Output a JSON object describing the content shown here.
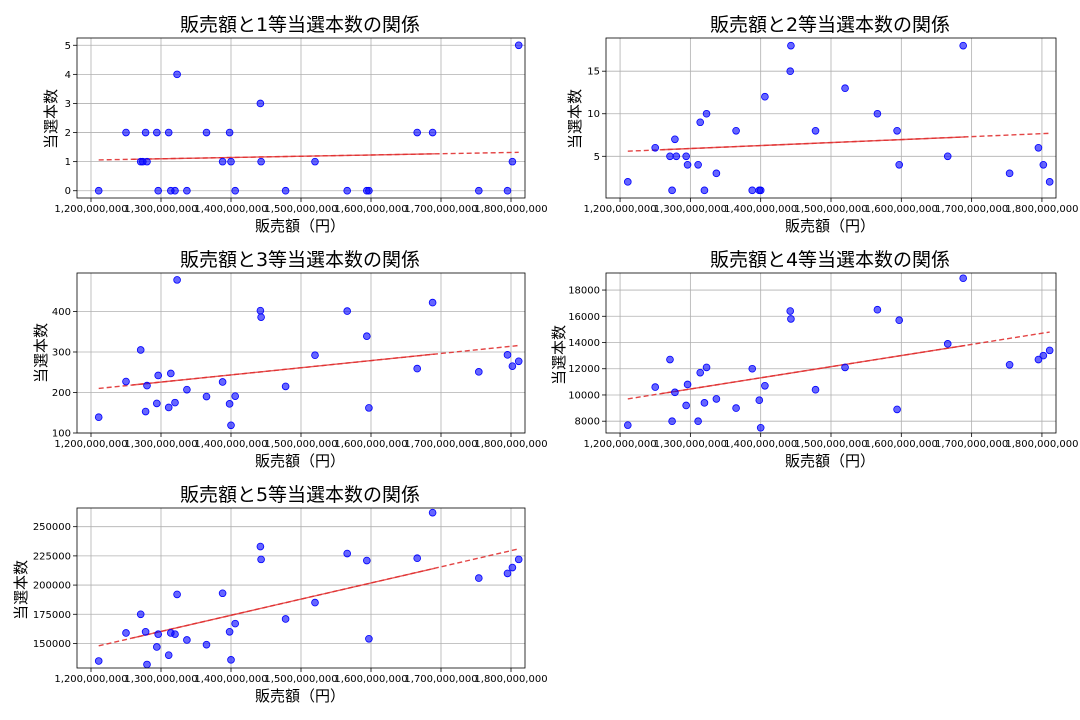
{
  "figure": {
    "colors": {
      "points": "#0000ff",
      "trend": "#e03030",
      "grid": "#b0b0b0"
    },
    "x_values": [
      1211000000,
      1250000000,
      1271000000,
      1274000000,
      1278000000,
      1280000000,
      1294000000,
      1296000000,
      1311000000,
      1314000000,
      1320000000,
      1323000000,
      1337000000,
      1365000000,
      1388000000,
      1398000000,
      1400000000,
      1406000000,
      1442000000,
      1443000000,
      1478000000,
      1520000000,
      1566000000,
      1594000000,
      1597000000,
      1666000000,
      1688000000,
      1754000000,
      1795000000,
      1802000000,
      1811000000
    ]
  },
  "chart_data": [
    {
      "type": "scatter",
      "title": "販売額と1等当選本数の関係",
      "xlabel": "販売額（円）",
      "ylabel": "当選本数",
      "x_ticks": [
        "1,200,000,000",
        "1,300,000,000",
        "1,400,000,000",
        "1,500,000,000",
        "1,600,000,000",
        "1,700,000,000",
        "1,800,000,000"
      ],
      "y_ticks": [
        "0",
        "1",
        "2",
        "3",
        "4",
        "5"
      ],
      "xlim": [
        1180000000,
        1820000000
      ],
      "ylim": [
        -0.25,
        5.25
      ],
      "y_values": [
        0,
        2,
        1,
        1,
        2,
        1,
        2,
        0,
        2,
        0,
        0,
        4,
        0,
        2,
        1,
        2,
        1,
        0,
        3,
        1,
        0,
        1,
        0,
        0,
        0,
        2,
        2,
        0,
        0,
        1,
        5
      ],
      "trend": [
        1.06,
        1.32
      ],
      "grid": true
    },
    {
      "type": "scatter",
      "title": "販売額と2等当選本数の関係",
      "xlabel": "販売額（円）",
      "ylabel": "当選本数",
      "x_ticks": [
        "1,200,000,000",
        "1,300,000,000",
        "1,400,000,000",
        "1,500,000,000",
        "1,600,000,000",
        "1,700,000,000",
        "1,800,000,000"
      ],
      "y_ticks": [
        "5",
        "10",
        "15"
      ],
      "xlim": [
        1180000000,
        1820000000
      ],
      "ylim": [
        0.1,
        18.9
      ],
      "y_values": [
        2,
        6,
        5,
        1,
        7,
        5,
        5,
        4,
        4,
        9,
        1,
        10,
        3,
        8,
        1,
        1,
        1,
        12,
        15,
        18,
        8,
        13,
        10,
        8,
        4,
        5,
        18,
        3,
        6,
        4,
        2
      ],
      "trend": [
        5.6,
        7.7
      ],
      "grid": true
    },
    {
      "type": "scatter",
      "title": "販売額と3等当選本数の関係",
      "xlabel": "販売額（円）",
      "ylabel": "当選本数",
      "x_ticks": [
        "1,200,000,000",
        "1,300,000,000",
        "1,400,000,000",
        "1,500,000,000",
        "1,600,000,000",
        "1,700,000,000",
        "1,800,000,000"
      ],
      "y_ticks": [
        "100",
        "200",
        "300",
        "400"
      ],
      "xlim": [
        1180000000,
        1820000000
      ],
      "ylim": [
        100,
        495
      ],
      "y_values": [
        139,
        227,
        305,
        153,
        217,
        173,
        242,
        163,
        247,
        175,
        478,
        207,
        190,
        226,
        119,
        172,
        191,
        402,
        386,
        215,
        292,
        401,
        162,
        339,
        259,
        422,
        251,
        293,
        265,
        277
      ],
      "x_index": [
        0,
        1,
        2,
        4,
        5,
        6,
        7,
        8,
        9,
        10,
        11,
        12,
        13,
        14,
        16,
        15,
        17,
        18,
        19,
        20,
        21,
        22,
        24,
        23,
        25,
        26,
        27,
        28,
        29,
        30
      ],
      "trend": [
        210,
        316
      ],
      "grid": true
    },
    {
      "type": "scatter",
      "title": "販売額と4等当選本数の関係",
      "xlabel": "販売額（円）",
      "ylabel": "当選本数",
      "x_ticks": [
        "1,200,000,000",
        "1,300,000,000",
        "1,400,000,000",
        "1,500,000,000",
        "1,600,000,000",
        "1,700,000,000",
        "1,800,000,000"
      ],
      "y_ticks": [
        "8000",
        "10000",
        "12000",
        "14000",
        "16000",
        "18000"
      ],
      "xlim": [
        1180000000,
        1820000000
      ],
      "ylim": [
        7100,
        19300
      ],
      "y_values": [
        7700,
        10600,
        12700,
        8000,
        10200,
        9200,
        10800,
        8000,
        11700,
        9400,
        12100,
        9700,
        9000,
        12000,
        7500,
        9600,
        10700,
        16400,
        15800,
        10400,
        12100,
        16500,
        15700,
        8900,
        13900,
        18900,
        12300,
        12700,
        13000,
        13400
      ],
      "x_index": [
        0,
        1,
        2,
        3,
        4,
        6,
        7,
        8,
        9,
        10,
        11,
        12,
        13,
        14,
        16,
        15,
        17,
        18,
        19,
        20,
        21,
        22,
        24,
        23,
        25,
        26,
        27,
        28,
        29,
        30
      ],
      "trend": [
        9700,
        14800
      ],
      "grid": true
    },
    {
      "type": "scatter",
      "title": "販売額と5等当選本数の関係",
      "xlabel": "販売額（円）",
      "ylabel": "当選本数",
      "x_ticks": [
        "1,200,000,000",
        "1,300,000,000",
        "1,400,000,000",
        "1,500,000,000",
        "1,600,000,000",
        "1,700,000,000",
        "1,800,000,000"
      ],
      "y_ticks": [
        "150000",
        "175000",
        "200000",
        "225000",
        "250000"
      ],
      "xlim": [
        1180000000,
        1820000000
      ],
      "ylim": [
        129000,
        266000
      ],
      "y_values": [
        135000,
        159000,
        175000,
        160000,
        132000,
        147000,
        158000,
        140000,
        159000,
        158000,
        192000,
        153000,
        149000,
        193000,
        160000,
        136000,
        167000,
        233000,
        222000,
        171000,
        185000,
        227000,
        221000,
        154000,
        223000,
        262000,
        206000,
        210000,
        215000,
        222000
      ],
      "x_index": [
        0,
        1,
        2,
        4,
        5,
        6,
        7,
        8,
        9,
        10,
        11,
        12,
        13,
        14,
        15,
        16,
        17,
        18,
        19,
        20,
        21,
        22,
        23,
        24,
        25,
        26,
        27,
        28,
        29,
        30
      ],
      "trend": [
        148000,
        231000
      ],
      "grid": true
    }
  ]
}
